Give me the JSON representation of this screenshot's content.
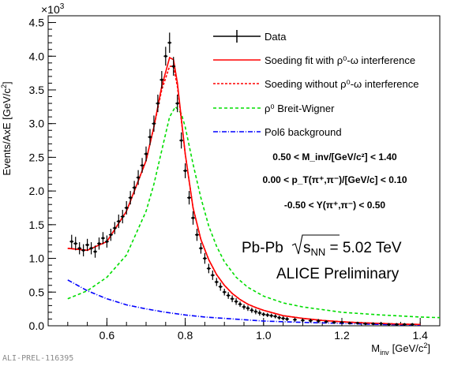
{
  "chart_data": {
    "type": "line",
    "xlabel": "M",
    "xlabel_sub": "inv",
    "xlabel_unit": "[GeV/c",
    "xlabel_unit_sup": "2",
    "xlabel_unit_end": "]",
    "ylabel": "Events/AxE [GeV/c",
    "ylabel_sup": "2",
    "ylabel_end": "]",
    "y_multiplier_base": "×10",
    "y_multiplier_exp": "3",
    "xlim": [
      0.45,
      1.45
    ],
    "ylim": [
      0,
      4.6
    ],
    "x_ticks": [
      "0.6",
      "0.8",
      "1.0",
      "1.2",
      "1.4"
    ],
    "y_ticks": [
      "0.0",
      "0.5",
      "1.0",
      "1.5",
      "2.0",
      "2.5",
      "3.0",
      "3.5",
      "4.0",
      "4.5"
    ],
    "legend": [
      {
        "label": "Data",
        "color": "#000000",
        "style": "errorbar"
      },
      {
        "label": "Soeding fit with ρ⁰-ω interference",
        "color": "#ff0000",
        "style": "solid"
      },
      {
        "label": "Soeding without ρ⁰-ω interference",
        "color": "#ff0000",
        "style": "dashed"
      },
      {
        "label": "ρ⁰ Breit-Wigner",
        "color": "#00dd00",
        "style": "dashed"
      },
      {
        "label": "Pol6 background",
        "color": "#0000ff",
        "style": "dashdot"
      }
    ],
    "cuts": [
      "0.50 < M_inv/[GeV/c²] < 1.40",
      "0.00 < p_T(π⁺,π⁻)/[GeV/c]  < 0.10",
      "-0.50 < Y(π⁺,π⁻) < 0.50"
    ],
    "series": [
      {
        "name": "Data",
        "style": "points",
        "x": [
          0.51,
          0.52,
          0.53,
          0.54,
          0.55,
          0.56,
          0.57,
          0.58,
          0.59,
          0.6,
          0.61,
          0.62,
          0.63,
          0.64,
          0.65,
          0.66,
          0.67,
          0.68,
          0.69,
          0.7,
          0.71,
          0.72,
          0.73,
          0.74,
          0.75,
          0.76,
          0.77,
          0.78,
          0.79,
          0.8,
          0.81,
          0.82,
          0.83,
          0.84,
          0.85,
          0.86,
          0.87,
          0.88,
          0.89,
          0.9,
          0.91,
          0.92,
          0.93,
          0.94,
          0.95,
          0.96,
          0.97,
          0.98,
          0.99,
          1.0,
          1.01,
          1.02,
          1.03,
          1.04,
          1.05,
          1.06,
          1.08,
          1.1,
          1.12,
          1.14,
          1.16,
          1.18,
          1.2,
          1.22,
          1.24,
          1.26,
          1.28,
          1.3,
          1.32,
          1.34,
          1.36,
          1.38
        ],
        "y": [
          1.25,
          1.22,
          1.15,
          1.12,
          1.2,
          1.15,
          1.1,
          1.22,
          1.3,
          1.25,
          1.35,
          1.45,
          1.55,
          1.62,
          1.75,
          1.9,
          2.05,
          2.2,
          2.38,
          2.55,
          2.8,
          3.0,
          3.3,
          3.65,
          4.0,
          4.2,
          3.85,
          3.3,
          2.75,
          2.3,
          1.9,
          1.6,
          1.35,
          1.15,
          1.0,
          0.85,
          0.75,
          0.65,
          0.58,
          0.5,
          0.45,
          0.4,
          0.36,
          0.32,
          0.28,
          0.26,
          0.23,
          0.21,
          0.19,
          0.17,
          0.16,
          0.15,
          0.14,
          0.12,
          0.11,
          0.1,
          0.09,
          0.08,
          0.075,
          0.07,
          0.06,
          0.05,
          0.05,
          0.04,
          0.04,
          0.03,
          0.03,
          0.03,
          0.02,
          0.02,
          0.02,
          0.02
        ],
        "yerr": [
          0.1,
          0.1,
          0.09,
          0.09,
          0.09,
          0.09,
          0.09,
          0.09,
          0.09,
          0.09,
          0.09,
          0.09,
          0.1,
          0.1,
          0.1,
          0.1,
          0.1,
          0.11,
          0.11,
          0.11,
          0.12,
          0.12,
          0.13,
          0.13,
          0.14,
          0.15,
          0.14,
          0.13,
          0.12,
          0.11,
          0.1,
          0.1,
          0.09,
          0.08,
          0.08,
          0.07,
          0.07,
          0.06,
          0.06,
          0.05,
          0.05,
          0.05,
          0.05,
          0.04,
          0.04,
          0.04,
          0.04,
          0.04,
          0.04,
          0.03,
          0.03,
          0.03,
          0.03,
          0.03,
          0.03,
          0.03,
          0.03,
          0.03,
          0.03,
          0.03,
          0.02,
          0.02,
          0.02,
          0.02,
          0.02,
          0.02,
          0.02,
          0.02,
          0.02,
          0.02,
          0.02,
          0.02
        ]
      },
      {
        "name": "Soeding fit with ρ⁰-ω interference",
        "style": "solid",
        "x": [
          0.5,
          0.55,
          0.6,
          0.65,
          0.7,
          0.72,
          0.74,
          0.76,
          0.77,
          0.78,
          0.8,
          0.82,
          0.84,
          0.86,
          0.88,
          0.9,
          0.92,
          0.94,
          0.96,
          0.98,
          1.0,
          1.05,
          1.1,
          1.15,
          1.2,
          1.25,
          1.3,
          1.35,
          1.4
        ],
        "y": [
          1.15,
          1.12,
          1.25,
          1.7,
          2.45,
          2.95,
          3.55,
          3.98,
          3.95,
          3.6,
          2.55,
          1.75,
          1.28,
          0.98,
          0.76,
          0.6,
          0.48,
          0.39,
          0.32,
          0.27,
          0.23,
          0.15,
          0.11,
          0.08,
          0.06,
          0.045,
          0.035,
          0.025,
          0.02
        ]
      },
      {
        "name": "Soeding without ρ⁰-ω interference",
        "style": "dashed",
        "x": [
          0.5,
          0.55,
          0.6,
          0.65,
          0.7,
          0.72,
          0.74,
          0.76,
          0.77,
          0.78,
          0.8,
          0.82,
          0.84,
          0.86,
          0.88,
          0.9,
          0.92,
          0.94,
          0.96,
          0.98,
          1.0,
          1.05,
          1.1,
          1.15,
          1.2,
          1.25,
          1.3,
          1.35,
          1.4
        ],
        "y": [
          1.15,
          1.12,
          1.25,
          1.7,
          2.45,
          2.95,
          3.5,
          3.85,
          3.85,
          3.55,
          2.55,
          1.75,
          1.28,
          0.98,
          0.76,
          0.6,
          0.48,
          0.39,
          0.32,
          0.27,
          0.23,
          0.15,
          0.11,
          0.08,
          0.06,
          0.045,
          0.035,
          0.025,
          0.02
        ]
      },
      {
        "name": "ρ⁰ Breit-Wigner",
        "style": "dashed",
        "x": [
          0.5,
          0.55,
          0.6,
          0.65,
          0.7,
          0.72,
          0.74,
          0.76,
          0.775,
          0.79,
          0.8,
          0.82,
          0.84,
          0.86,
          0.88,
          0.9,
          0.93,
          0.96,
          1.0,
          1.05,
          1.1,
          1.2,
          1.3,
          1.4,
          1.45
        ],
        "y": [
          0.4,
          0.52,
          0.72,
          1.05,
          1.7,
          2.1,
          2.6,
          3.1,
          3.25,
          3.15,
          2.95,
          2.4,
          1.9,
          1.48,
          1.18,
          0.95,
          0.72,
          0.57,
          0.44,
          0.34,
          0.28,
          0.2,
          0.16,
          0.13,
          0.12
        ]
      },
      {
        "name": "Pol6 background",
        "style": "dashdot",
        "x": [
          0.5,
          0.55,
          0.6,
          0.65,
          0.7,
          0.75,
          0.8,
          0.85,
          0.9,
          1.0,
          1.1,
          1.2,
          1.3,
          1.4
        ],
        "y": [
          0.68,
          0.52,
          0.4,
          0.31,
          0.25,
          0.2,
          0.16,
          0.13,
          0.11,
          0.07,
          0.05,
          0.035,
          0.02,
          0.01
        ]
      }
    ]
  },
  "annotations": {
    "system_label": "Pb-Pb",
    "energy_prefix": "s",
    "energy_sub": "NN",
    "energy_value": " = 5.02 TeV",
    "preliminary": "ALICE Preliminary",
    "figure_id": "ALI-PREL-116395"
  }
}
